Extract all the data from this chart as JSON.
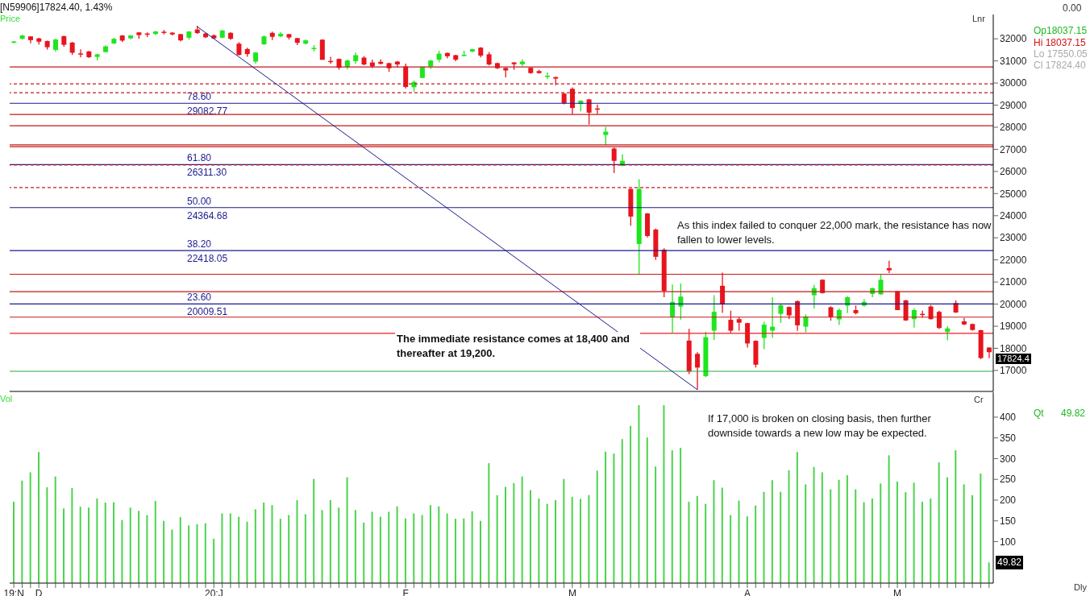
{
  "chart_data": [
    {
      "type": "candlestick",
      "title": "[N59906]17824.40,  1.43%",
      "categories": [
        null,
        null,
        null,
        null,
        null,
        null,
        null,
        null,
        null,
        null,
        null,
        null,
        null,
        null,
        null,
        null,
        null,
        null,
        null,
        null,
        null,
        null,
        null,
        null,
        null,
        null,
        null,
        null,
        null,
        null,
        null,
        null,
        null,
        null,
        null,
        null,
        null,
        null,
        null,
        null,
        null,
        null,
        null,
        null,
        null,
        null,
        null,
        null,
        null,
        null,
        null,
        null,
        null,
        null,
        null,
        null,
        null,
        null,
        null,
        null,
        null,
        null,
        null,
        null,
        null,
        null,
        null,
        null,
        null,
        null,
        null,
        null,
        null,
        null,
        null,
        null,
        null,
        null,
        null,
        null,
        null,
        null,
        null,
        null,
        null,
        null,
        null,
        null,
        null,
        null,
        null,
        null,
        null,
        null,
        null,
        null,
        null,
        null,
        null,
        null,
        null,
        null,
        null,
        null,
        null,
        null,
        null,
        null,
        null,
        null,
        null,
        null,
        null,
        null,
        null,
        null,
        null,
        null
      ],
      "ohlc": [
        [
          31840,
          31900,
          31790,
          31880
        ],
        [
          32000,
          32180,
          31980,
          32150
        ],
        [
          32110,
          32120,
          31800,
          31940
        ],
        [
          32020,
          32040,
          31740,
          31870
        ],
        [
          31900,
          31920,
          31510,
          31620
        ],
        [
          31500,
          32000,
          31420,
          31970
        ],
        [
          32120,
          32140,
          31640,
          31730
        ],
        [
          31830,
          31860,
          31270,
          31370
        ],
        [
          31340,
          31520,
          31160,
          31330
        ],
        [
          31430,
          31450,
          31130,
          31170
        ],
        [
          31180,
          31320,
          31020,
          31300
        ],
        [
          31400,
          31700,
          31380,
          31660
        ],
        [
          31790,
          32040,
          31770,
          32000
        ],
        [
          32150,
          32170,
          31850,
          31920
        ],
        [
          32020,
          32170,
          31980,
          32150
        ],
        [
          32290,
          32300,
          32000,
          32170
        ],
        [
          32240,
          32290,
          32080,
          32190
        ],
        [
          32220,
          32360,
          32170,
          32330
        ],
        [
          32320,
          32400,
          32200,
          32270
        ],
        [
          32280,
          32300,
          32150,
          32200
        ],
        [
          32210,
          32230,
          31880,
          31930
        ],
        [
          32050,
          32350,
          31960,
          32330
        ],
        [
          32420,
          32590,
          32230,
          32260
        ],
        [
          32240,
          32280,
          32030,
          32070
        ],
        [
          32160,
          32200,
          31990,
          32020
        ],
        [
          32050,
          32400,
          32030,
          32380
        ],
        [
          32270,
          32300,
          31950,
          32000
        ],
        [
          31780,
          31850,
          31250,
          31270
        ],
        [
          31540,
          31600,
          31190,
          31310
        ],
        [
          30970,
          31400,
          30880,
          31380
        ],
        [
          31750,
          32150,
          31730,
          32110
        ],
        [
          32270,
          32330,
          31940,
          32090
        ],
        [
          32110,
          32300,
          32080,
          32230
        ],
        [
          32210,
          32230,
          31970,
          32060
        ],
        [
          32030,
          32040,
          31720,
          31820
        ],
        [
          31780,
          31970,
          31740,
          31930
        ],
        [
          31570,
          31720,
          31430,
          31590
        ],
        [
          31960,
          31980,
          31050,
          31050
        ],
        [
          31000,
          31190,
          30870,
          30990
        ],
        [
          31090,
          31110,
          30610,
          30690
        ],
        [
          30730,
          31050,
          30620,
          31020
        ],
        [
          30990,
          31380,
          30880,
          31260
        ],
        [
          31150,
          31220,
          30800,
          30840
        ],
        [
          30930,
          31060,
          30680,
          30750
        ],
        [
          30960,
          31070,
          30840,
          30870
        ],
        [
          30900,
          30920,
          30510,
          30670
        ],
        [
          30970,
          31000,
          30700,
          30840
        ],
        [
          30750,
          30880,
          29760,
          29820
        ],
        [
          29810,
          30110,
          29610,
          30050
        ],
        [
          30230,
          30750,
          30220,
          30730
        ],
        [
          30750,
          31040,
          30630,
          31020
        ],
        [
          31055,
          31460,
          30940,
          31330
        ],
        [
          31360,
          31380,
          31110,
          31210
        ],
        [
          31260,
          31280,
          30990,
          31055
        ],
        [
          31260,
          31460,
          31200,
          31280
        ],
        [
          31420,
          31550,
          31400,
          31530
        ],
        [
          31600,
          31620,
          31160,
          31240
        ],
        [
          31300,
          31400,
          30790,
          30840
        ],
        [
          30900,
          30920,
          30630,
          30670
        ],
        [
          30680,
          30700,
          30260,
          30570
        ],
        [
          30930,
          30950,
          30600,
          30850
        ],
        [
          30850,
          31080,
          30760,
          30970
        ],
        [
          30690,
          30700,
          30420,
          30450
        ],
        [
          30540,
          30600,
          30420,
          30450
        ],
        [
          30300,
          30480,
          30190,
          30330
        ],
        [
          30270,
          30290,
          29900,
          30200
        ],
        [
          29520,
          29560,
          29040,
          29080
        ],
        [
          29740,
          29800,
          28590,
          28870
        ],
        [
          29050,
          29220,
          28720,
          29200
        ],
        [
          29260,
          29280,
          28120,
          28660
        ],
        [
          28850,
          29030,
          28600,
          28840
        ],
        [
          27650,
          28020,
          27200,
          27800
        ],
        [
          27040,
          27080,
          25930,
          26480
        ],
        [
          26260,
          26780,
          26230,
          26480
        ],
        [
          25210,
          25230,
          23540,
          23960
        ],
        [
          22720,
          25650,
          21350,
          25210
        ],
        [
          24100,
          24120,
          23020,
          23080
        ],
        [
          23370,
          23420,
          22000,
          22140
        ],
        [
          22460,
          22530,
          20310,
          20590
        ],
        [
          19410,
          20890,
          18700,
          20100
        ],
        [
          19890,
          20930,
          19300,
          20340
        ],
        [
          18350,
          18880,
          16830,
          16950
        ],
        [
          17750,
          17830,
          16120,
          17130
        ],
        [
          16740,
          18750,
          16700,
          18500
        ],
        [
          18800,
          20400,
          18370,
          19650
        ],
        [
          20830,
          21420,
          19600,
          19980
        ],
        [
          19290,
          19700,
          18690,
          18800
        ],
        [
          19320,
          19430,
          18800,
          19160
        ],
        [
          19140,
          19160,
          18040,
          18220
        ],
        [
          18340,
          18360,
          17130,
          17260
        ],
        [
          18470,
          19200,
          17960,
          19070
        ],
        [
          18800,
          20310,
          18470,
          18980
        ],
        [
          19560,
          20000,
          19150,
          19950
        ],
        [
          19870,
          19890,
          19320,
          19490
        ],
        [
          20130,
          20170,
          18790,
          19040
        ],
        [
          18980,
          19540,
          18720,
          19440
        ],
        [
          20400,
          20870,
          19790,
          20720
        ],
        [
          21100,
          21120,
          20480,
          20500
        ],
        [
          19860,
          19900,
          19250,
          19410
        ],
        [
          19310,
          19800,
          19060,
          19730
        ],
        [
          19930,
          20360,
          19590,
          20310
        ],
        [
          19730,
          19940,
          19530,
          19590
        ],
        [
          19930,
          20220,
          19880,
          20100
        ],
        [
          20460,
          20740,
          20310,
          20720
        ],
        [
          20440,
          21340,
          20420,
          21100
        ],
        [
          21630,
          21960,
          21410,
          21530
        ],
        [
          20580,
          20600,
          19720,
          19730
        ],
        [
          20170,
          20190,
          19240,
          19260
        ],
        [
          19320,
          19800,
          18940,
          19730
        ],
        [
          19560,
          19700,
          19380,
          19550
        ],
        [
          19890,
          19960,
          19300,
          19320
        ],
        [
          19650,
          19700,
          18870,
          18920
        ],
        [
          18740,
          19000,
          18360,
          18900
        ],
        [
          20050,
          20170,
          19600,
          19620
        ],
        [
          19220,
          19370,
          19050,
          19080
        ],
        [
          19100,
          19120,
          18800,
          18830
        ],
        [
          18820,
          18840,
          17510,
          17560
        ],
        [
          18037.15,
          18037.15,
          17550.05,
          17824.4
        ]
      ],
      "colors": [
        "#1ee61e",
        "#1ee61e",
        "#e8141e",
        "#e8141e",
        "#e8141e",
        "#1ee61e",
        "#e8141e",
        "#e8141e",
        "#e8141e",
        "#e8141e",
        "#1ee61e",
        "#1ee61e",
        "#1ee61e",
        "#e8141e",
        "#1ee61e",
        "#e8141e",
        "#e8141e",
        "#1ee61e",
        "#e8141e",
        "#e8141e",
        "#e8141e",
        "#1ee61e",
        "#e8141e",
        "#e8141e",
        "#e8141e",
        "#1ee61e",
        "#e8141e",
        "#e8141e",
        "#e8141e",
        "#1ee61e",
        "#1ee61e",
        "#e8141e",
        "#1ee61e",
        "#e8141e",
        "#e8141e",
        "#1ee61e",
        "#1ee61e",
        "#e8141e",
        "#e8141e",
        "#e8141e",
        "#1ee61e",
        "#1ee61e",
        "#e8141e",
        "#e8141e",
        "#e8141e",
        "#e8141e",
        "#e8141e",
        "#e8141e",
        "#1ee61e",
        "#1ee61e",
        "#1ee61e",
        "#1ee61e",
        "#e8141e",
        "#e8141e",
        "#1ee61e",
        "#1ee61e",
        "#e8141e",
        "#e8141e",
        "#e8141e",
        "#e8141e",
        "#e8141e",
        "#1ee61e",
        "#e8141e",
        "#e8141e",
        "#1ee61e",
        "#e8141e",
        "#e8141e",
        "#e8141e",
        "#1ee61e",
        "#e8141e",
        "#e8141e",
        "#1ee61e",
        "#e8141e",
        "#1ee61e",
        "#e8141e",
        "#1ee61e",
        "#e8141e",
        "#e8141e",
        "#e8141e",
        "#1ee61e",
        "#1ee61e",
        "#e8141e",
        "#e8141e",
        "#1ee61e",
        "#1ee61e",
        "#e8141e",
        "#e8141e",
        "#e8141e",
        "#e8141e",
        "#e8141e",
        "#1ee61e",
        "#1ee61e",
        "#1ee61e",
        "#e8141e",
        "#e8141e",
        "#1ee61e",
        "#1ee61e",
        "#e8141e",
        "#e8141e",
        "#1ee61e",
        "#1ee61e",
        "#e8141e",
        "#1ee61e",
        "#1ee61e",
        "#1ee61e",
        "#e8141e",
        "#e8141e",
        "#e8141e",
        "#1ee61e",
        "#e8141e",
        "#e8141e",
        "#e8141e",
        "#1ee61e",
        "#e8141e",
        "#e8141e",
        "#e8141e",
        "#e8141e",
        "#e8141e"
      ],
      "series": [
        {
          "type": "line",
          "color": "#1a1a8c",
          "values": [
            null,
            null,
            null,
            null,
            null,
            null,
            null,
            null,
            null,
            null,
            null,
            null,
            null,
            null,
            null,
            null,
            null,
            null,
            null,
            null,
            null,
            null,
            32550,
            null,
            null,
            null,
            null,
            null,
            null,
            null,
            null,
            null,
            null,
            null,
            null,
            null,
            null,
            null,
            null,
            null,
            null,
            null,
            null,
            null,
            null,
            null,
            null,
            null,
            null,
            null,
            null,
            null,
            null,
            null,
            null,
            null,
            null,
            null,
            null,
            null,
            null,
            null,
            null,
            null,
            null,
            null,
            null,
            null,
            null,
            null,
            null,
            null,
            null,
            null,
            null,
            null,
            null,
            null,
            null,
            null,
            null,
            null,
            16130,
            null,
            null,
            null,
            null,
            null,
            null,
            null,
            null,
            null,
            null,
            null,
            null,
            null,
            null,
            null,
            null,
            null,
            null,
            null,
            null,
            null,
            null,
            null,
            null,
            null,
            null,
            null,
            null,
            null,
            null,
            null,
            null,
            null,
            null,
            null
          ]
        }
      ],
      "ylim": [
        16050,
        33100
      ],
      "yticks": [
        17000,
        18000,
        19000,
        20000,
        21000,
        22000,
        23000,
        24000,
        25000,
        26000,
        27000,
        28000,
        29000,
        30000,
        31000,
        32000
      ],
      "tick_labels": "y",
      "ref_lines": [
        {
          "axis": "y",
          "value": 29082.77,
          "label": "78.60\n29082.77",
          "color": "#1a1a8c"
        },
        {
          "axis": "y",
          "value": 26311.3,
          "label": "61.80\n26311.30",
          "color": "#1a1a8c"
        },
        {
          "axis": "y",
          "value": 24364.68,
          "label": "50.00\n24364.68",
          "color": "#1a1a8c"
        },
        {
          "axis": "y",
          "value": 22418.05,
          "label": "38.20\n22418.05",
          "color": "#1a1a8c"
        },
        {
          "axis": "y",
          "value": 20009.51,
          "label": "23.60\n20009.51",
          "color": "#1a1a8c"
        },
        {
          "axis": "y",
          "value": 30730,
          "color": "#c41a1a",
          "line_style": "solid"
        },
        {
          "axis": "y",
          "value": 29960,
          "color": "#c41a1a",
          "line_style": "dashed"
        },
        {
          "axis": "y",
          "value": 29560,
          "color": "#c41a1a",
          "line_style": "dashed"
        },
        {
          "axis": "y",
          "value": 28580,
          "color": "#c41a1a",
          "line_style": "solid"
        },
        {
          "axis": "y",
          "value": 28070,
          "color": "#c41a1a",
          "line_style": "solid"
        },
        {
          "axis": "y",
          "value": 27200,
          "color": "#c41a1a",
          "line_style": "solid"
        },
        {
          "axis": "y",
          "value": 27120,
          "color": "#c41a1a",
          "line_style": "solid"
        },
        {
          "axis": "y",
          "value": 26290,
          "color": "#c41a1a",
          "line_style": "dashed"
        },
        {
          "axis": "y",
          "value": 25270,
          "color": "#c41a1a",
          "line_style": "dashed"
        },
        {
          "axis": "y",
          "value": 21350,
          "color": "#c41a1a",
          "line_style": "solid"
        },
        {
          "axis": "y",
          "value": 20560,
          "color": "#c41a1a",
          "line_style": "solid"
        },
        {
          "axis": "y",
          "value": 19410,
          "color": "#c41a1a",
          "line_style": "solid"
        },
        {
          "axis": "y",
          "value": 18680,
          "color": "#f01e1e",
          "line_style": "solid"
        },
        {
          "axis": "y",
          "value": 16960,
          "color": "#28a745",
          "line_style": "solid"
        }
      ],
      "annotations": [
        "Price",
        "Lnr",
        "0.00",
        "Op18037.15",
        "Hi 18037.15",
        "Lo 17550.05",
        "Cl 17824.40",
        "As this index failed to conquer 22,000 mark, the resistance has now fallen to lower levels.",
        "The immediate resistance comes at 18,400 and thereafter at 19,200.",
        "17824.4"
      ]
    },
    {
      "type": "bar",
      "categories": [
        "19:N",
        null,
        null,
        "D",
        null,
        null,
        null,
        null,
        null,
        null,
        null,
        null,
        null,
        null,
        null,
        null,
        null,
        null,
        null,
        null,
        null,
        null,
        null,
        null,
        "20:J",
        null,
        null,
        null,
        null,
        null,
        null,
        null,
        null,
        null,
        null,
        null,
        null,
        null,
        null,
        null,
        null,
        null,
        null,
        null,
        null,
        null,
        null,
        "F",
        null,
        null,
        null,
        null,
        null,
        null,
        null,
        null,
        null,
        null,
        null,
        null,
        null,
        null,
        null,
        null,
        null,
        null,
        null,
        "M",
        null,
        null,
        null,
        null,
        null,
        null,
        null,
        null,
        null,
        null,
        null,
        null,
        null,
        null,
        null,
        null,
        null,
        null,
        null,
        null,
        "A",
        null,
        null,
        null,
        null,
        null,
        null,
        null,
        null,
        null,
        null,
        null,
        null,
        null,
        null,
        null,
        null,
        null,
        "M",
        null,
        null,
        null,
        null,
        null,
        null,
        null,
        null,
        null,
        null,
        null
      ],
      "values": [
        196,
        247,
        267,
        316,
        231,
        257,
        180,
        229,
        184,
        182,
        204,
        194,
        195,
        152,
        182,
        174,
        164,
        198,
        150,
        129,
        159,
        139,
        142,
        144,
        107,
        168,
        168,
        160,
        148,
        178,
        194,
        188,
        155,
        164,
        200,
        166,
        251,
        176,
        200,
        182,
        255,
        176,
        146,
        172,
        160,
        172,
        185,
        156,
        168,
        164,
        188,
        185,
        168,
        155,
        156,
        173,
        150,
        289,
        212,
        232,
        241,
        257,
        224,
        204,
        191,
        200,
        251,
        208,
        203,
        212,
        271,
        317,
        312,
        347,
        379,
        429,
        351,
        281,
        429,
        320,
        326,
        196,
        210,
        191,
        248,
        230,
        164,
        199,
        161,
        187,
        220,
        248,
        220,
        272,
        316,
        238,
        280,
        267,
        226,
        249,
        260,
        226,
        195,
        204,
        240,
        308,
        245,
        219,
        242,
        196,
        204,
        291,
        255,
        320,
        238,
        212,
        264,
        49.82
      ],
      "color": "#4cd34c",
      "ylim": [
        0,
        460
      ],
      "yticks": [
        100,
        150,
        200,
        250,
        300,
        350,
        400
      ],
      "annotations": [
        "Vol",
        "Cr",
        "Qt",
        "49.82",
        "49.82",
        "If 17,000 is broken on closing basis, then further downside towards a new low may be expected.",
        "Dly"
      ]
    }
  ]
}
